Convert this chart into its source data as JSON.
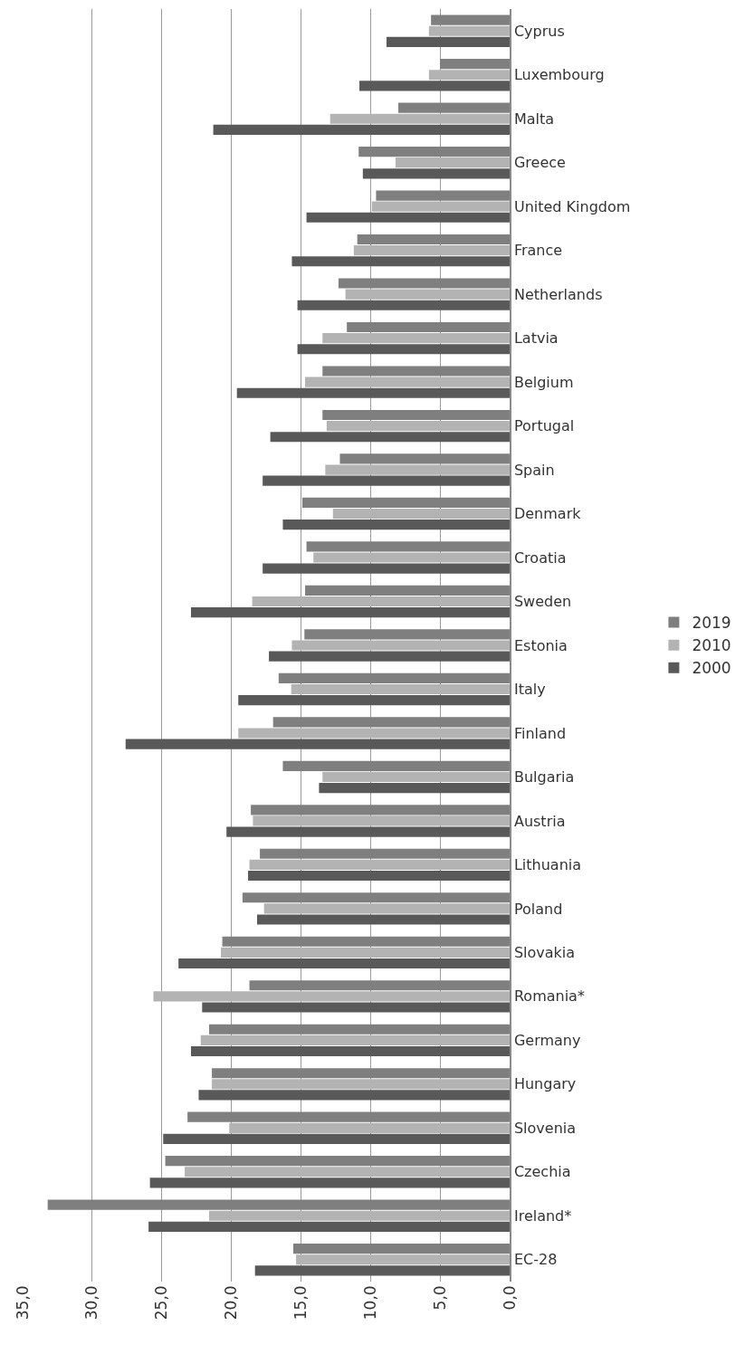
{
  "chart_data": {
    "type": "bar",
    "orientation": "horizontal",
    "categories": [
      "Cyprus",
      "Luxembourg",
      "Malta",
      "Greece",
      "United Kingdom",
      "France",
      "Netherlands",
      "Latvia",
      "Belgium",
      "Portugal",
      "Spain",
      "Denmark",
      "Croatia",
      "Sweden",
      "Estonia",
      "Italy",
      "Finland",
      "Bulgaria",
      "Austria",
      "Lithuania",
      "Poland",
      "Slovakia",
      "Romania*",
      "Germany",
      "Hungary",
      "Slovenia",
      "Czechia",
      "Ireland*",
      "EC-28"
    ],
    "series": [
      {
        "name": "2019",
        "color": "#7f7f7f",
        "values": [
          5.65,
          5.0,
          8.0,
          10.85,
          9.6,
          10.95,
          12.3,
          11.7,
          13.45,
          13.45,
          12.2,
          14.9,
          14.6,
          14.7,
          14.75,
          16.6,
          17.0,
          16.3,
          18.6,
          17.95,
          19.2,
          20.65,
          18.7,
          21.6,
          21.4,
          23.15,
          24.75,
          33.2,
          15.55
        ]
      },
      {
        "name": "2010",
        "color": "#b3b3b3",
        "values": [
          5.8,
          5.8,
          12.9,
          8.2,
          9.9,
          11.2,
          11.8,
          13.45,
          14.7,
          13.15,
          13.25,
          12.7,
          14.1,
          18.5,
          15.65,
          15.7,
          19.5,
          13.45,
          18.45,
          18.7,
          17.65,
          20.75,
          25.6,
          22.2,
          21.4,
          20.15,
          23.35,
          21.6,
          15.35
        ]
      },
      {
        "name": "2000",
        "color": "#595959",
        "values": [
          8.85,
          10.8,
          21.3,
          10.55,
          14.6,
          15.65,
          15.25,
          15.25,
          19.6,
          17.2,
          17.75,
          16.3,
          17.75,
          22.9,
          17.3,
          19.5,
          27.6,
          13.7,
          20.35,
          18.8,
          18.15,
          23.8,
          22.1,
          22.9,
          22.35,
          24.9,
          25.85,
          25.95,
          18.3
        ]
      }
    ],
    "xlim": [
      35,
      0
    ],
    "xticks": [
      {
        "value": 35,
        "label": "35,0"
      },
      {
        "value": 30,
        "label": "30,0"
      },
      {
        "value": 25,
        "label": "25,0"
      },
      {
        "value": 20,
        "label": "20,0"
      },
      {
        "value": 15,
        "label": "15,0"
      },
      {
        "value": 10,
        "label": "10,0"
      },
      {
        "value": 5,
        "label": "5,0"
      },
      {
        "value": 0,
        "label": "0,0"
      }
    ],
    "grid": "x",
    "legend": "right"
  }
}
